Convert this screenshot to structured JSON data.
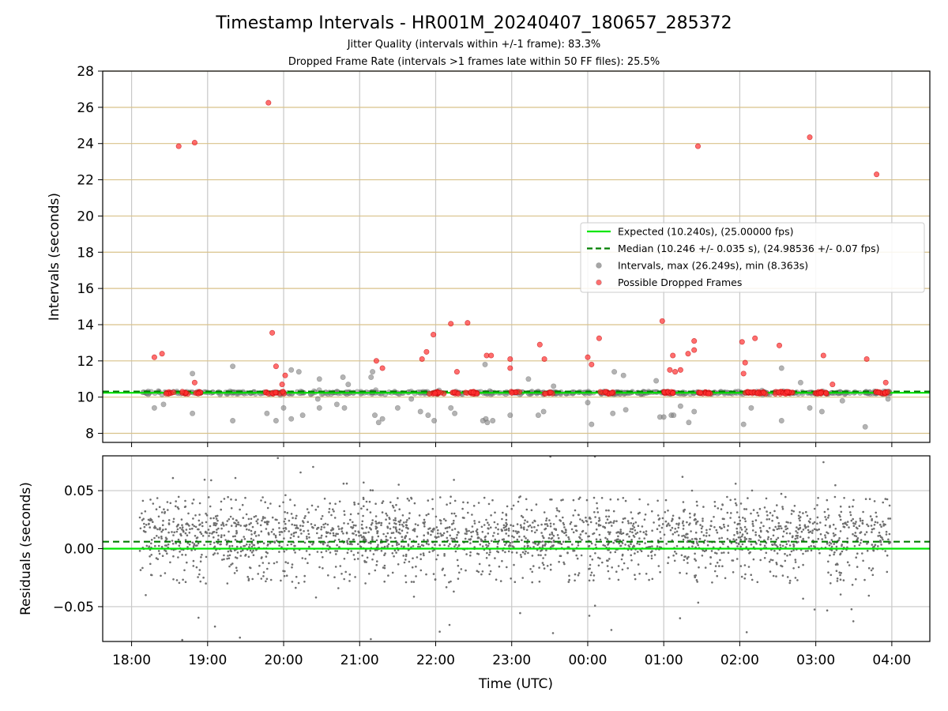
{
  "chart_data": {
    "type": "scatter",
    "title": "Timestamp Intervals - HR001M_20240407_180657_285372",
    "subtitles": [
      "Jitter Quality (intervals within +/-1 frame): 83.3%",
      "Dropped Frame Rate (intervals >1 frames late within 50 FF files): 25.5%"
    ],
    "xlabel": "Time (UTC)",
    "x_ticks": [
      "18:00",
      "19:00",
      "20:00",
      "21:00",
      "22:00",
      "23:00",
      "00:00",
      "01:00",
      "02:00",
      "03:00",
      "04:00"
    ],
    "x_range_hours": [
      17.62,
      28.5
    ],
    "panels": [
      {
        "name": "intervals",
        "ylabel": "Intervals (seconds)",
        "ylim": [
          7.5,
          28
        ],
        "y_ticks": [
          "8",
          "10",
          "12",
          "14",
          "16",
          "18",
          "20",
          "22",
          "24",
          "26",
          "28"
        ],
        "grid": "vertical-gray-at-hours, horizontal-tan-at-even-seconds",
        "expected_interval": 10.24,
        "median_interval": 10.246,
        "intervals_range": [
          8.363,
          26.249
        ],
        "interval_outliers": [
          [
            18.3,
            9.4
          ],
          [
            18.42,
            9.6
          ],
          [
            18.8,
            9.1
          ],
          [
            18.8,
            11.3
          ],
          [
            19.33,
            11.7
          ],
          [
            19.33,
            8.7
          ],
          [
            19.78,
            9.1
          ],
          [
            19.9,
            8.7
          ],
          [
            20.0,
            9.4
          ],
          [
            20.1,
            8.8
          ],
          [
            20.1,
            11.5
          ],
          [
            20.2,
            11.4
          ],
          [
            20.25,
            9.0
          ],
          [
            20.45,
            9.9
          ],
          [
            20.47,
            9.4
          ],
          [
            20.47,
            11.0
          ],
          [
            20.7,
            9.6
          ],
          [
            20.78,
            11.1
          ],
          [
            20.8,
            9.4
          ],
          [
            20.85,
            10.7
          ],
          [
            21.15,
            11.1
          ],
          [
            21.17,
            11.4
          ],
          [
            21.2,
            9.0
          ],
          [
            21.25,
            8.6
          ],
          [
            21.3,
            8.8
          ],
          [
            21.5,
            9.4
          ],
          [
            21.68,
            9.9
          ],
          [
            21.8,
            9.2
          ],
          [
            21.9,
            9.0
          ],
          [
            21.98,
            8.7
          ],
          [
            22.2,
            9.4
          ],
          [
            22.25,
            9.1
          ],
          [
            22.65,
            11.8
          ],
          [
            22.62,
            8.7
          ],
          [
            22.66,
            8.8
          ],
          [
            22.68,
            8.6
          ],
          [
            22.75,
            8.7
          ],
          [
            22.98,
            9.0
          ],
          [
            23.22,
            11.0
          ],
          [
            23.35,
            9.0
          ],
          [
            23.42,
            9.2
          ],
          [
            23.55,
            10.6
          ],
          [
            24.05,
            8.5
          ],
          [
            24.0,
            9.7
          ],
          [
            24.33,
            9.1
          ],
          [
            24.35,
            11.4
          ],
          [
            24.47,
            11.2
          ],
          [
            24.5,
            9.3
          ],
          [
            24.9,
            10.9
          ],
          [
            24.95,
            8.9
          ],
          [
            25.0,
            8.9
          ],
          [
            25.1,
            9.0
          ],
          [
            25.13,
            9.0
          ],
          [
            25.22,
            9.5
          ],
          [
            25.33,
            8.6
          ],
          [
            25.4,
            9.2
          ],
          [
            26.05,
            8.5
          ],
          [
            26.15,
            9.4
          ],
          [
            26.55,
            8.7
          ],
          [
            26.55,
            11.6
          ],
          [
            26.8,
            10.8
          ],
          [
            26.92,
            9.4
          ],
          [
            27.08,
            9.2
          ],
          [
            27.35,
            9.8
          ],
          [
            27.65,
            8.36
          ],
          [
            27.95,
            9.9
          ]
        ],
        "dropped_frames": [
          [
            18.3,
            12.2
          ],
          [
            18.4,
            12.4
          ],
          [
            18.62,
            23.85
          ],
          [
            18.83,
            24.05
          ],
          [
            18.83,
            10.8
          ],
          [
            19.8,
            26.25
          ],
          [
            19.85,
            13.55
          ],
          [
            19.9,
            11.7
          ],
          [
            19.98,
            10.7
          ],
          [
            20.02,
            11.2
          ],
          [
            21.22,
            12.0
          ],
          [
            21.3,
            11.6
          ],
          [
            21.82,
            12.1
          ],
          [
            21.88,
            12.5
          ],
          [
            21.97,
            13.45
          ],
          [
            22.2,
            14.05
          ],
          [
            22.28,
            11.4
          ],
          [
            22.42,
            14.1
          ],
          [
            22.67,
            12.3
          ],
          [
            22.73,
            12.3
          ],
          [
            22.98,
            12.1
          ],
          [
            22.98,
            11.6
          ],
          [
            23.37,
            12.9
          ],
          [
            23.43,
            12.1
          ],
          [
            24.0,
            12.2
          ],
          [
            24.05,
            11.8
          ],
          [
            24.15,
            13.25
          ],
          [
            24.98,
            14.2
          ],
          [
            25.08,
            11.5
          ],
          [
            25.12,
            12.3
          ],
          [
            25.15,
            11.4
          ],
          [
            25.22,
            11.5
          ],
          [
            25.32,
            12.4
          ],
          [
            25.4,
            12.6
          ],
          [
            25.4,
            13.1
          ],
          [
            25.45,
            23.85
          ],
          [
            26.03,
            13.05
          ],
          [
            26.05,
            11.3
          ],
          [
            26.07,
            11.9
          ],
          [
            26.2,
            13.25
          ],
          [
            26.52,
            12.85
          ],
          [
            26.92,
            24.35
          ],
          [
            27.1,
            12.3
          ],
          [
            27.22,
            10.7
          ],
          [
            27.67,
            12.1
          ],
          [
            27.8,
            22.3
          ],
          [
            27.92,
            10.8
          ]
        ],
        "legend": {
          "placement": "center-right",
          "entries": [
            {
              "label": "Expected (10.240s), (25.00000 fps)",
              "marker": "line",
              "color": "#00e600"
            },
            {
              "label": "Median (10.246 +/- 0.035 s), (24.98536 +/- 0.07 fps)",
              "marker": "dashed",
              "color": "#007f00"
            },
            {
              "label": "Intervals, max (26.249s), min (8.363s)",
              "marker": "dot",
              "color": "#808080"
            },
            {
              "label": "Possible Dropped Frames",
              "marker": "dot",
              "color": "#ff3030"
            }
          ]
        }
      },
      {
        "name": "residuals",
        "ylabel": "Residuals (seconds)",
        "ylim": [
          -0.08,
          0.08
        ],
        "y_ticks": [
          "−0.05",
          "0.00",
          "0.05"
        ],
        "grid": "gray-both",
        "expected_residual": 0.0,
        "median_residual": 0.006,
        "typical_band": [
          -0.03,
          0.045
        ],
        "sample_count_approx": 2400
      }
    ],
    "colors": {
      "expected": "#00e600",
      "median": "#007f00",
      "intervals": "#808080",
      "dropped": "#ff3030",
      "vgrid": "#c8c8c8",
      "hgrid": "#d9c28a",
      "residuals": "#6e6e6e"
    }
  }
}
